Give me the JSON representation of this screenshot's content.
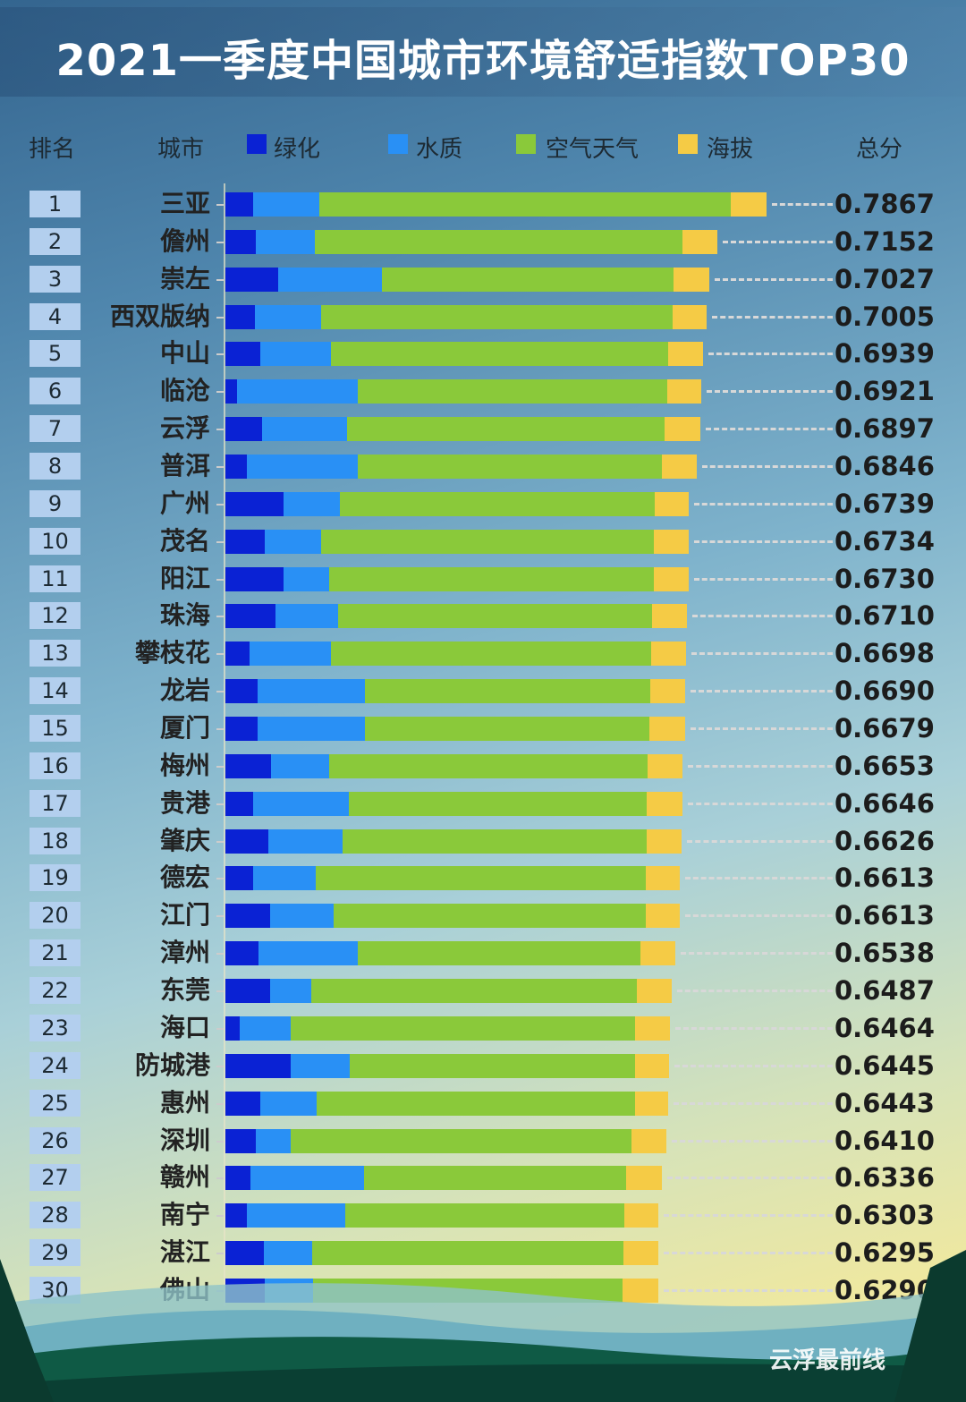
{
  "chart_data": {
    "type": "bar",
    "orientation": "horizontal",
    "stacked": true,
    "title": "2021一季度中国城市环境舒适指数TOP30",
    "columns": {
      "rank": "排名",
      "city": "城市",
      "total": "总分"
    },
    "legend_placement": "top",
    "series": [
      {
        "name": "绿化",
        "color": "#0a22d4",
        "values": [
          0.04,
          0.044,
          0.077,
          0.043,
          0.051,
          0.017,
          0.053,
          0.031,
          0.085,
          0.057,
          0.085,
          0.073,
          0.035,
          0.047,
          0.047,
          0.066,
          0.04,
          0.062,
          0.04,
          0.065,
          0.048,
          0.065,
          0.021,
          0.095,
          0.051,
          0.044,
          0.036,
          0.031,
          0.056,
          0.057
        ]
      },
      {
        "name": "水质",
        "color": "#2990f5",
        "values": [
          0.096,
          0.086,
          0.15,
          0.096,
          0.103,
          0.176,
          0.124,
          0.161,
          0.081,
          0.082,
          0.066,
          0.091,
          0.118,
          0.156,
          0.156,
          0.085,
          0.14,
          0.109,
          0.091,
          0.092,
          0.144,
          0.06,
          0.074,
          0.086,
          0.081,
          0.051,
          0.166,
          0.143,
          0.07,
          0.07
        ]
      },
      {
        "name": "空气天气",
        "color": "#8ac93a",
        "values": [
          0.599,
          0.534,
          0.425,
          0.511,
          0.49,
          0.449,
          0.462,
          0.442,
          0.458,
          0.484,
          0.472,
          0.456,
          0.466,
          0.415,
          0.414,
          0.463,
          0.433,
          0.441,
          0.48,
          0.454,
          0.411,
          0.473,
          0.501,
          0.414,
          0.463,
          0.495,
          0.381,
          0.406,
          0.453,
          0.451
        ]
      },
      {
        "name": "海拔",
        "color": "#f5cb45",
        "values": [
          0.052,
          0.051,
          0.051,
          0.05,
          0.05,
          0.05,
          0.051,
          0.051,
          0.05,
          0.05,
          0.05,
          0.051,
          0.051,
          0.051,
          0.051,
          0.051,
          0.052,
          0.051,
          0.05,
          0.05,
          0.051,
          0.051,
          0.05,
          0.05,
          0.049,
          0.051,
          0.051,
          0.05,
          0.051,
          0.051
        ]
      }
    ],
    "ranks": [
      "1",
      "2",
      "3",
      "4",
      "5",
      "6",
      "7",
      "8",
      "9",
      "10",
      "11",
      "12",
      "13",
      "14",
      "15",
      "16",
      "17",
      "18",
      "19",
      "20",
      "21",
      "22",
      "23",
      "24",
      "25",
      "26",
      "27",
      "28",
      "29",
      "30"
    ],
    "categories": [
      "三亚",
      "儋州",
      "崇左",
      "西双版纳",
      "中山",
      "临沧",
      "云浮",
      "普洱",
      "广州",
      "茂名",
      "阳江",
      "珠海",
      "攀枝花",
      "龙岩",
      "厦门",
      "梅州",
      "贵港",
      "肇庆",
      "德宏",
      "江门",
      "漳州",
      "东莞",
      "海口",
      "防城港",
      "惠州",
      "深圳",
      "赣州",
      "南宁",
      "湛江",
      "佛山"
    ],
    "totals": [
      "0.7867",
      "0.7152",
      "0.7027",
      "0.7005",
      "0.6939",
      "0.6921",
      "0.6897",
      "0.6846",
      "0.6739",
      "0.6734",
      "0.6730",
      "0.6710",
      "0.6698",
      "0.6690",
      "0.6679",
      "0.6653",
      "0.6646",
      "0.6626",
      "0.6613",
      "0.6613",
      "0.6538",
      "0.6487",
      "0.6464",
      "0.6445",
      "0.6443",
      "0.6410",
      "0.6336",
      "0.6303",
      "0.6295",
      "0.6290"
    ]
  },
  "watermark": "云浮最前线"
}
